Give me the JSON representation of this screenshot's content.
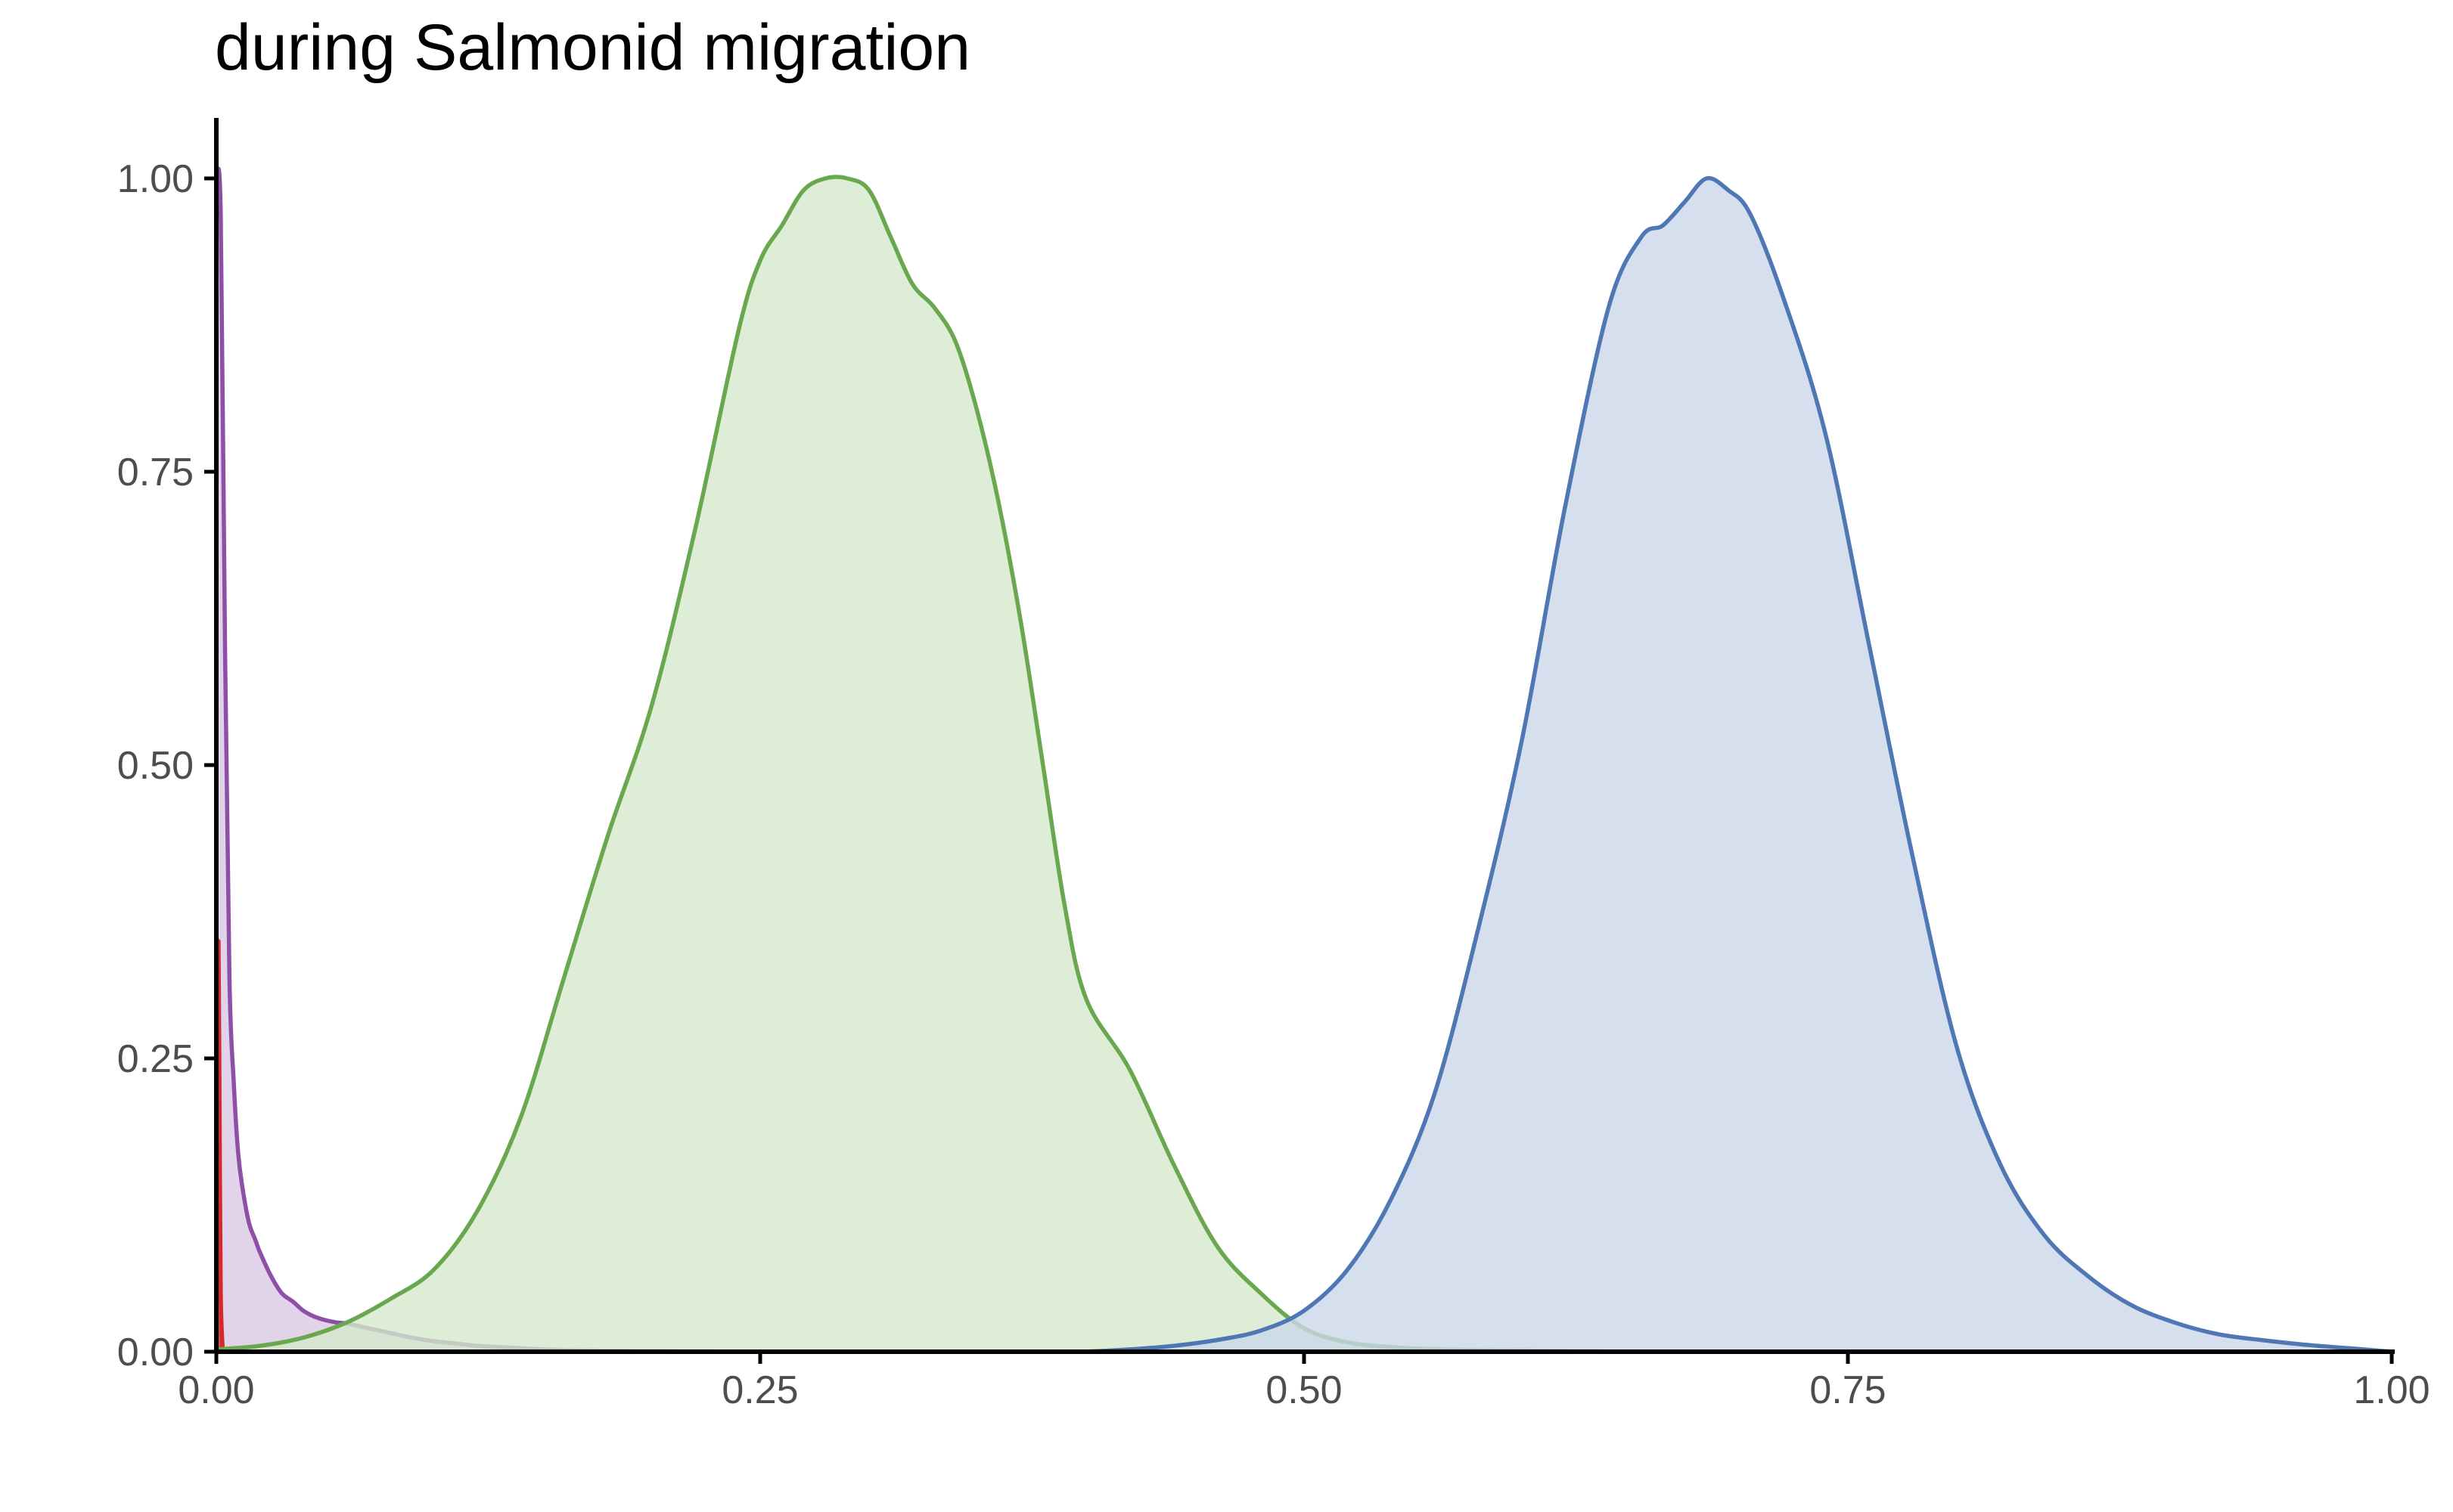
{
  "chart_data": {
    "type": "area",
    "title": "during Salmonid migration",
    "xlabel": "",
    "ylabel": "",
    "xlim": [
      0,
      1
    ],
    "ylim": [
      0,
      1
    ],
    "grid": false,
    "x_ticks": [
      "0.00",
      "0.25",
      "0.50",
      "0.75",
      "1.00"
    ],
    "y_ticks": [
      "0.00",
      "0.25",
      "0.50",
      "0.75",
      "1.00"
    ],
    "series": [
      {
        "color": "#8e4fa6",
        "fill": "#dac8e4",
        "x": [
          0.0,
          0.002,
          0.004,
          0.006,
          0.008,
          0.01,
          0.012,
          0.015,
          0.018,
          0.02,
          0.025,
          0.03,
          0.035,
          0.04,
          0.045,
          0.05,
          0.055,
          0.06,
          0.07,
          0.08,
          0.09,
          0.1,
          0.11,
          0.12,
          0.13,
          0.14,
          0.15,
          0.17,
          0.2,
          0.25
        ],
        "y": [
          1.0,
          0.97,
          0.6,
          0.32,
          0.23,
          0.17,
          0.14,
          0.11,
          0.095,
          0.085,
          0.065,
          0.05,
          0.043,
          0.035,
          0.03,
          0.027,
          0.025,
          0.024,
          0.02,
          0.016,
          0.012,
          0.009,
          0.007,
          0.005,
          0.004,
          0.003,
          0.002,
          0.001,
          0.0005,
          0.0
        ]
      },
      {
        "color": "#d42a2a",
        "fill": "#d42a2a",
        "x": [
          0.0,
          0.0005,
          0.001,
          0.0015,
          0.002,
          0.003
        ],
        "y": [
          0.0,
          0.2,
          0.35,
          0.2,
          0.05,
          0.0
        ]
      },
      {
        "color": "#6aa84f",
        "fill": "#d5e8cc",
        "x": [
          0.0,
          0.02,
          0.04,
          0.06,
          0.08,
          0.1,
          0.12,
          0.14,
          0.16,
          0.18,
          0.2,
          0.22,
          0.24,
          0.25,
          0.26,
          0.27,
          0.28,
          0.29,
          0.3,
          0.31,
          0.32,
          0.33,
          0.34,
          0.35,
          0.36,
          0.37,
          0.38,
          0.39,
          0.4,
          0.42,
          0.44,
          0.46,
          0.48,
          0.5,
          0.52,
          0.54,
          0.56,
          0.6,
          0.65
        ],
        "y": [
          0.002,
          0.005,
          0.012,
          0.025,
          0.045,
          0.07,
          0.12,
          0.2,
          0.32,
          0.44,
          0.55,
          0.7,
          0.87,
          0.93,
          0.96,
          0.99,
          1.0,
          1.0,
          0.99,
          0.95,
          0.91,
          0.89,
          0.86,
          0.8,
          0.72,
          0.62,
          0.5,
          0.38,
          0.3,
          0.24,
          0.16,
          0.09,
          0.05,
          0.02,
          0.008,
          0.004,
          0.002,
          0.001,
          0.0
        ]
      },
      {
        "color": "#4f77b3",
        "fill": "#cad7e9",
        "x": [
          0.4,
          0.42,
          0.44,
          0.46,
          0.48,
          0.5,
          0.52,
          0.54,
          0.56,
          0.58,
          0.6,
          0.62,
          0.64,
          0.655,
          0.665,
          0.675,
          0.685,
          0.695,
          0.705,
          0.72,
          0.74,
          0.76,
          0.78,
          0.8,
          0.82,
          0.84,
          0.86,
          0.88,
          0.9,
          0.92,
          0.94,
          0.96,
          0.98,
          1.0
        ],
        "y": [
          0.0,
          0.002,
          0.005,
          0.01,
          0.018,
          0.035,
          0.07,
          0.13,
          0.22,
          0.36,
          0.52,
          0.72,
          0.89,
          0.95,
          0.96,
          0.98,
          1.0,
          0.99,
          0.97,
          0.9,
          0.78,
          0.6,
          0.42,
          0.26,
          0.16,
          0.1,
          0.065,
          0.04,
          0.025,
          0.015,
          0.01,
          0.006,
          0.003,
          0.0
        ]
      }
    ]
  }
}
